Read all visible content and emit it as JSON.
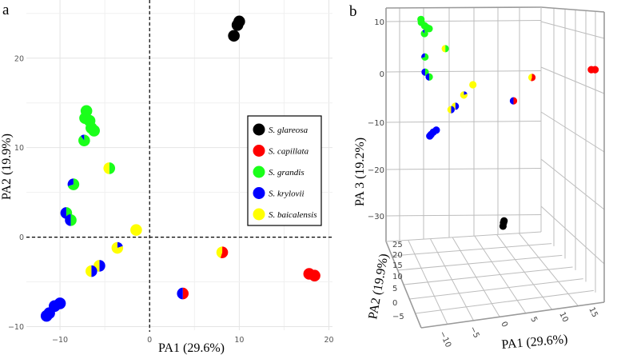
{
  "panels": {
    "a": "a",
    "b": "b"
  },
  "colors": {
    "glareosa": "#000000",
    "capillata": "#ff0000",
    "grandis": "#1aff1a",
    "krylovii": "#0000ff",
    "baicalensis": "#ffff00"
  },
  "legend": {
    "placement": "right",
    "items": [
      {
        "key": "glareosa",
        "label": "S. glareosa"
      },
      {
        "key": "capillata",
        "label": "S. capillata"
      },
      {
        "key": "grandis",
        "label": "S. grandis"
      },
      {
        "key": "krylovii",
        "label": "S. krylovii"
      },
      {
        "key": "baicalensis",
        "label": "S. baicalensis"
      }
    ]
  },
  "chart_data": [
    {
      "type": "scatter",
      "panel": "a",
      "marker": "pie",
      "xlabel": "PA1 (29.6%)",
      "ylabel": "PA2 (19.9%)",
      "xlim": [
        -13.75,
        20.4
      ],
      "ylim": [
        -10.4,
        26.5
      ],
      "xticks": [
        -10,
        0,
        10,
        20
      ],
      "xtick_labels": [
        "−10",
        "0",
        "10",
        "20"
      ],
      "yticks": [
        -10,
        0,
        10,
        20
      ],
      "ytick_labels": [
        "−10",
        "0",
        "10",
        "20"
      ],
      "grid": true,
      "reference_lines": {
        "x": 0,
        "y": 0,
        "style": "dashed"
      },
      "legend": "right"
    },
    {
      "type": "scatter",
      "panel": "b",
      "marker": "pie",
      "projection": "3d",
      "xlabel": "PA1 (29.6%)",
      "ylabel": "PA2 (19.9%)",
      "zlabel": "PA 3 (19.2%)",
      "xtick_labels": [
        "−10",
        "−5",
        "0",
        "5",
        "10",
        "15"
      ],
      "ytick_labels": [
        "25",
        "20",
        "15",
        "10",
        "5",
        "0",
        "−5"
      ],
      "ztick_labels": [
        "10",
        "0",
        "−10",
        "−20",
        "−30"
      ],
      "grid": true
    }
  ],
  "points": [
    {
      "pa1": 10.0,
      "pa2": 24.1,
      "pa3": -30.2,
      "mix": [
        [
          "glareosa",
          1
        ]
      ]
    },
    {
      "pa1": 9.8,
      "pa2": 23.7,
      "pa3": -30.6,
      "mix": [
        [
          "glareosa",
          1
        ]
      ]
    },
    {
      "pa1": 9.4,
      "pa2": 22.5,
      "pa3": -31.3,
      "mix": [
        [
          "glareosa",
          1
        ]
      ]
    },
    {
      "pa1": -7.05,
      "pa2": 14.1,
      "pa3": 11.1,
      "mix": [
        [
          "grandis",
          1
        ]
      ]
    },
    {
      "pa1": -7.2,
      "pa2": 13.3,
      "pa3": 10.5,
      "mix": [
        [
          "grandis",
          1
        ]
      ]
    },
    {
      "pa1": -6.7,
      "pa2": 13.0,
      "pa3": 9.8,
      "mix": [
        [
          "grandis",
          1
        ]
      ]
    },
    {
      "pa1": -6.5,
      "pa2": 12.2,
      "pa3": 9.4,
      "mix": [
        [
          "grandis",
          1
        ]
      ]
    },
    {
      "pa1": -6.2,
      "pa2": 11.9,
      "pa3": 9.2,
      "mix": [
        [
          "grandis",
          1
        ]
      ]
    },
    {
      "pa1": -7.3,
      "pa2": 10.8,
      "pa3": 8.2,
      "mix": [
        [
          "grandis",
          0.9
        ],
        [
          "krylovii",
          0.1
        ]
      ]
    },
    {
      "pa1": -4.5,
      "pa2": 7.7,
      "pa3": 5.1,
      "mix": [
        [
          "grandis",
          0.5
        ],
        [
          "baicalensis",
          0.5
        ]
      ]
    },
    {
      "pa1": -8.5,
      "pa2": 5.9,
      "pa3": 3.4,
      "mix": [
        [
          "grandis",
          0.7
        ],
        [
          "krylovii",
          0.3
        ]
      ]
    },
    {
      "pa1": -9.3,
      "pa2": 2.7,
      "pa3": 0.3,
      "mix": [
        [
          "grandis",
          0.5
        ],
        [
          "krylovii",
          0.5
        ]
      ]
    },
    {
      "pa1": -8.8,
      "pa2": 1.9,
      "pa3": -0.7,
      "mix": [
        [
          "grandis",
          0.5
        ],
        [
          "krylovii",
          0.5
        ]
      ]
    },
    {
      "pa1": -1.5,
      "pa2": 0.8,
      "pa3": -2.3,
      "mix": [
        [
          "baicalensis",
          1
        ]
      ]
    },
    {
      "pa1": -3.6,
      "pa2": -1.2,
      "pa3": -4.4,
      "mix": [
        [
          "krylovii",
          0.2
        ],
        [
          "baicalensis",
          0.8
        ]
      ]
    },
    {
      "pa1": -5.6,
      "pa2": -3.2,
      "pa3": -6.7,
      "mix": [
        [
          "krylovii",
          0.5
        ],
        [
          "baicalensis",
          0.5
        ]
      ]
    },
    {
      "pa1": -6.5,
      "pa2": -3.8,
      "pa3": -7.4,
      "mix": [
        [
          "krylovii",
          0.5
        ],
        [
          "baicalensis",
          0.5
        ]
      ]
    },
    {
      "pa1": -10.0,
      "pa2": -7.4,
      "pa3": -11.6,
      "mix": [
        [
          "krylovii",
          1
        ]
      ]
    },
    {
      "pa1": -10.6,
      "pa2": -7.7,
      "pa3": -12.0,
      "mix": [
        [
          "krylovii",
          1
        ]
      ]
    },
    {
      "pa1": -11.2,
      "pa2": -8.5,
      "pa3": -12.5,
      "mix": [
        [
          "krylovii",
          1
        ]
      ]
    },
    {
      "pa1": -11.5,
      "pa2": -8.8,
      "pa3": -12.8,
      "mix": [
        [
          "krylovii",
          1
        ]
      ]
    },
    {
      "pa1": 3.7,
      "pa2": -6.3,
      "pa3": -5.6,
      "mix": [
        [
          "capillata",
          0.5
        ],
        [
          "krylovii",
          0.5
        ]
      ]
    },
    {
      "pa1": 8.1,
      "pa2": -1.7,
      "pa3": -0.8,
      "mix": [
        [
          "capillata",
          0.55
        ],
        [
          "baicalensis",
          0.45
        ]
      ]
    },
    {
      "pa1": 17.8,
      "pa2": -4.1,
      "pa3": 0.8,
      "mix": [
        [
          "capillata",
          1
        ]
      ]
    },
    {
      "pa1": 18.4,
      "pa2": -4.3,
      "pa3": 0.8,
      "mix": [
        [
          "capillata",
          1
        ]
      ]
    }
  ]
}
